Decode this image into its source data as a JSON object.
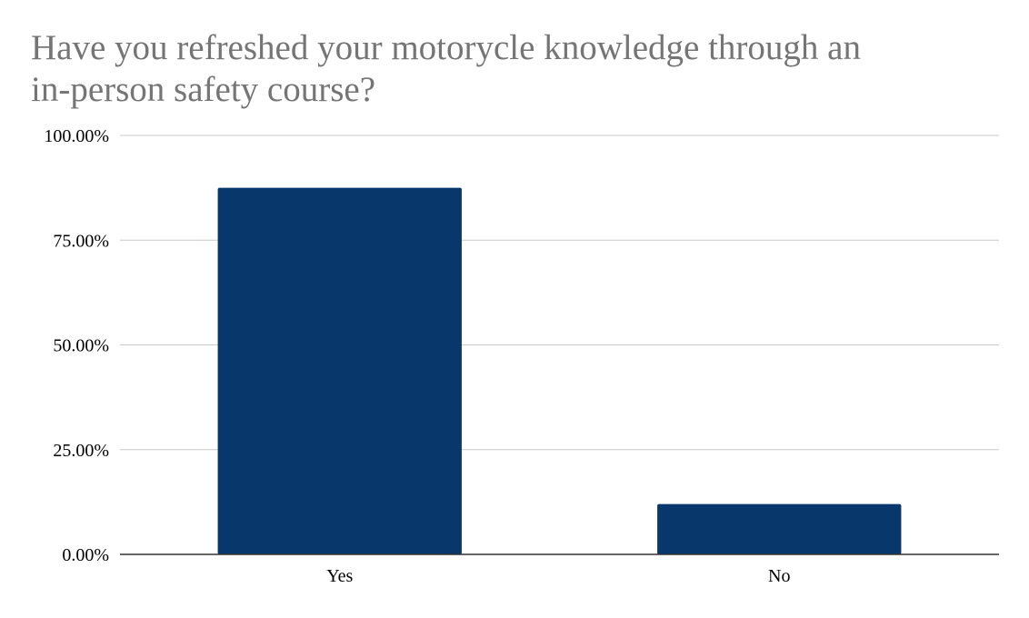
{
  "chart_data": {
    "type": "bar",
    "title_lines": [
      "Have you refreshed your motorycle knowledge through an",
      "in-person safety course?"
    ],
    "categories": [
      "Yes",
      "No"
    ],
    "values": [
      87.5,
      12.0
    ],
    "ylim": [
      0,
      100
    ],
    "yticks": [
      0,
      25,
      50,
      75,
      100
    ],
    "ytick_labels": [
      "0.00%",
      "25.00%",
      "50.00%",
      "75.00%",
      "100.00%"
    ],
    "xlabel": "",
    "ylabel": "",
    "grid": true,
    "bar_color": "#08386b",
    "grid_color": "#c8c8c8",
    "axis_color": "#333333"
  }
}
